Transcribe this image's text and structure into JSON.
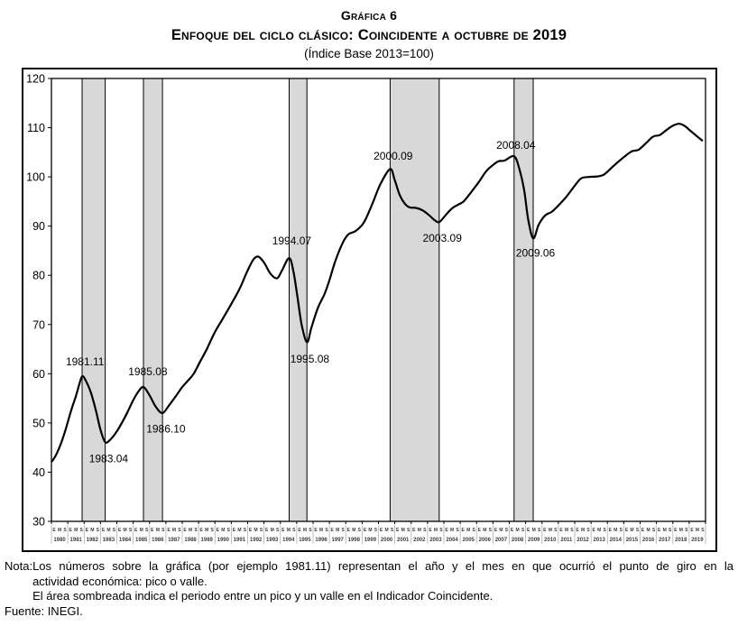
{
  "title": {
    "line1": "Gráfica 6",
    "line2": "Enfoque del ciclo clásico: Coincidente a octubre de 2019",
    "line3": "(Índice Base 2013=100)"
  },
  "note": {
    "label": "Nota:",
    "line1": "Los números sobre la gráfica (por ejemplo 1981.11) representan el año y el mes en que ocurrió el punto de giro en la",
    "line2": "actividad económica: pico o valle.",
    "line3": "El área sombreada indica el periodo entre un pico y un valle en el Indicador Coincidente.",
    "source": "Fuente: INEGI."
  },
  "chart_data": {
    "type": "line",
    "title": "Enfoque del ciclo clásico: Coincidente a octubre de 2019",
    "subtitle": "(Índice Base 2013=100)",
    "xlabel": "",
    "ylabel": "",
    "x_range": [
      1980,
      2020
    ],
    "ylim": [
      30,
      120
    ],
    "grid": false,
    "legend": "none",
    "y_axis": {
      "ticks": [
        120,
        110,
        100,
        90,
        80,
        70,
        60,
        50,
        40,
        30
      ]
    },
    "x_axis": {
      "month_ticks": [
        "E",
        "M",
        "S"
      ],
      "years": [
        "1980",
        "1981",
        "1982",
        "1983",
        "1984",
        "1985",
        "1986",
        "1987",
        "1988",
        "1989",
        "1990",
        "1991",
        "1992",
        "1993",
        "1994",
        "1995",
        "1996",
        "1997",
        "1998",
        "1999",
        "2000",
        "2001",
        "2002",
        "2003",
        "2004",
        "2005",
        "2006",
        "2007",
        "2008",
        "2009",
        "2010",
        "2011",
        "2012",
        "2013",
        "2014",
        "2015",
        "2016",
        "2017",
        "2018",
        "2019"
      ]
    },
    "series": [
      {
        "name": "Indicador Coincidente",
        "points": [
          [
            1980.04,
            42.2
          ],
          [
            1980.3,
            43.6
          ],
          [
            1980.6,
            46.0
          ],
          [
            1980.9,
            49.0
          ],
          [
            1981.2,
            52.5
          ],
          [
            1981.5,
            55.5
          ],
          [
            1981.7,
            57.8
          ],
          [
            1981.88,
            59.5
          ],
          [
            1982.1,
            58.6
          ],
          [
            1982.4,
            56.3
          ],
          [
            1982.7,
            52.8
          ],
          [
            1983.0,
            48.6
          ],
          [
            1983.29,
            46.1
          ],
          [
            1983.6,
            46.6
          ],
          [
            1984.0,
            48.3
          ],
          [
            1984.5,
            51.2
          ],
          [
            1985.0,
            54.6
          ],
          [
            1985.3,
            56.3
          ],
          [
            1985.63,
            57.3
          ],
          [
            1986.0,
            55.6
          ],
          [
            1986.4,
            53.2
          ],
          [
            1986.79,
            52.0
          ],
          [
            1987.2,
            53.6
          ],
          [
            1987.6,
            55.4
          ],
          [
            1988.0,
            57.3
          ],
          [
            1988.35,
            58.6
          ],
          [
            1988.7,
            60.0
          ],
          [
            1989.1,
            62.5
          ],
          [
            1989.5,
            65.0
          ],
          [
            1990.0,
            68.5
          ],
          [
            1990.5,
            71.3
          ],
          [
            1991.0,
            74.2
          ],
          [
            1991.5,
            77.2
          ],
          [
            1992.0,
            81.0
          ],
          [
            1992.35,
            83.2
          ],
          [
            1992.65,
            83.8
          ],
          [
            1993.0,
            82.6
          ],
          [
            1993.4,
            80.3
          ],
          [
            1993.8,
            79.4
          ],
          [
            1994.1,
            81.0
          ],
          [
            1994.54,
            83.5
          ],
          [
            1994.8,
            80.8
          ],
          [
            1995.05,
            75.5
          ],
          [
            1995.3,
            70.0
          ],
          [
            1995.63,
            66.4
          ],
          [
            1995.9,
            69.4
          ],
          [
            1996.3,
            73.4
          ],
          [
            1996.7,
            76.2
          ],
          [
            1997.0,
            79.0
          ],
          [
            1997.35,
            82.8
          ],
          [
            1997.8,
            86.5
          ],
          [
            1998.15,
            88.3
          ],
          [
            1998.6,
            89.0
          ],
          [
            1999.1,
            90.7
          ],
          [
            1999.6,
            94.3
          ],
          [
            2000.1,
            98.4
          ],
          [
            2000.71,
            101.6
          ],
          [
            2001.0,
            99.3
          ],
          [
            2001.3,
            96.3
          ],
          [
            2001.6,
            94.6
          ],
          [
            2001.9,
            93.8
          ],
          [
            2002.3,
            93.7
          ],
          [
            2002.7,
            93.2
          ],
          [
            2003.1,
            92.2
          ],
          [
            2003.4,
            91.3
          ],
          [
            2003.71,
            90.8
          ],
          [
            2004.1,
            92.2
          ],
          [
            2004.5,
            93.6
          ],
          [
            2004.9,
            94.4
          ],
          [
            2005.2,
            95.0
          ],
          [
            2005.6,
            96.6
          ],
          [
            2006.1,
            98.8
          ],
          [
            2006.6,
            101.2
          ],
          [
            2007.0,
            102.4
          ],
          [
            2007.35,
            103.2
          ],
          [
            2007.7,
            103.3
          ],
          [
            2008.29,
            104.2
          ],
          [
            2008.6,
            101.8
          ],
          [
            2008.9,
            97.5
          ],
          [
            2009.15,
            91.5
          ],
          [
            2009.46,
            87.5
          ],
          [
            2009.8,
            90.3
          ],
          [
            2010.2,
            92.2
          ],
          [
            2010.6,
            92.9
          ],
          [
            2011.0,
            94.2
          ],
          [
            2011.5,
            96.0
          ],
          [
            2012.0,
            98.2
          ],
          [
            2012.4,
            99.7
          ],
          [
            2012.9,
            100.0
          ],
          [
            2013.4,
            100.1
          ],
          [
            2013.8,
            100.5
          ],
          [
            2014.4,
            102.3
          ],
          [
            2015.0,
            104.0
          ],
          [
            2015.5,
            105.2
          ],
          [
            2015.9,
            105.5
          ],
          [
            2016.4,
            107.0
          ],
          [
            2016.8,
            108.2
          ],
          [
            2017.2,
            108.5
          ],
          [
            2017.6,
            109.5
          ],
          [
            2018.0,
            110.4
          ],
          [
            2018.4,
            110.8
          ],
          [
            2018.75,
            110.3
          ],
          [
            2019.1,
            109.3
          ],
          [
            2019.5,
            108.2
          ],
          [
            2019.79,
            107.4
          ]
        ]
      }
    ],
    "shaded_periods": [
      {
        "label_from": "1981.11",
        "label_to": "1983.04",
        "from": 1981.875,
        "to": 1983.29
      },
      {
        "label_from": "1985.08",
        "label_to": "1986.10",
        "from": 1985.625,
        "to": 1986.79
      },
      {
        "label_from": "1994.07",
        "label_to": "1995.08",
        "from": 1994.54,
        "to": 1995.625
      },
      {
        "label_from": "2000.09",
        "label_to": "2003.09",
        "from": 2000.71,
        "to": 2003.71
      },
      {
        "label_from": "2008.04",
        "label_to": "2009.06",
        "from": 2008.29,
        "to": 2009.46
      }
    ],
    "annotations": [
      {
        "text": "1981.11",
        "type": "pico",
        "point_value": 59.5,
        "x": 1982.05,
        "y": 62.4
      },
      {
        "text": "1983.04",
        "type": "valle",
        "point_value": 46.1,
        "x": 1983.5,
        "y": 42.7
      },
      {
        "text": "1985.08",
        "type": "pico",
        "point_value": 57.3,
        "x": 1985.9,
        "y": 60.4
      },
      {
        "text": "1986.10",
        "type": "valle",
        "point_value": 52.0,
        "x": 1987.0,
        "y": 48.8
      },
      {
        "text": "1994.07",
        "type": "pico",
        "point_value": 83.5,
        "x": 1994.7,
        "y": 87.0
      },
      {
        "text": "1995.08",
        "type": "valle",
        "point_value": 66.4,
        "x": 1995.8,
        "y": 63.0
      },
      {
        "text": "2000.09",
        "type": "pico",
        "point_value": 101.6,
        "x": 2000.9,
        "y": 104.2
      },
      {
        "text": "2003.09",
        "type": "valle",
        "point_value": 90.8,
        "x": 2003.9,
        "y": 87.6
      },
      {
        "text": "2008.04",
        "type": "pico",
        "point_value": 104.2,
        "x": 2008.4,
        "y": 106.4
      },
      {
        "text": "2009.06",
        "type": "valle",
        "point_value": 87.5,
        "x": 2009.6,
        "y": 84.5
      }
    ],
    "colors": {
      "line": "#000000",
      "band_fill": "#d8d8d8",
      "band_border": "#000000",
      "plot_border": "#000000",
      "axis_label": "#000000",
      "x_label": "#3d3d3d",
      "separator": "#b0b0b0"
    }
  }
}
